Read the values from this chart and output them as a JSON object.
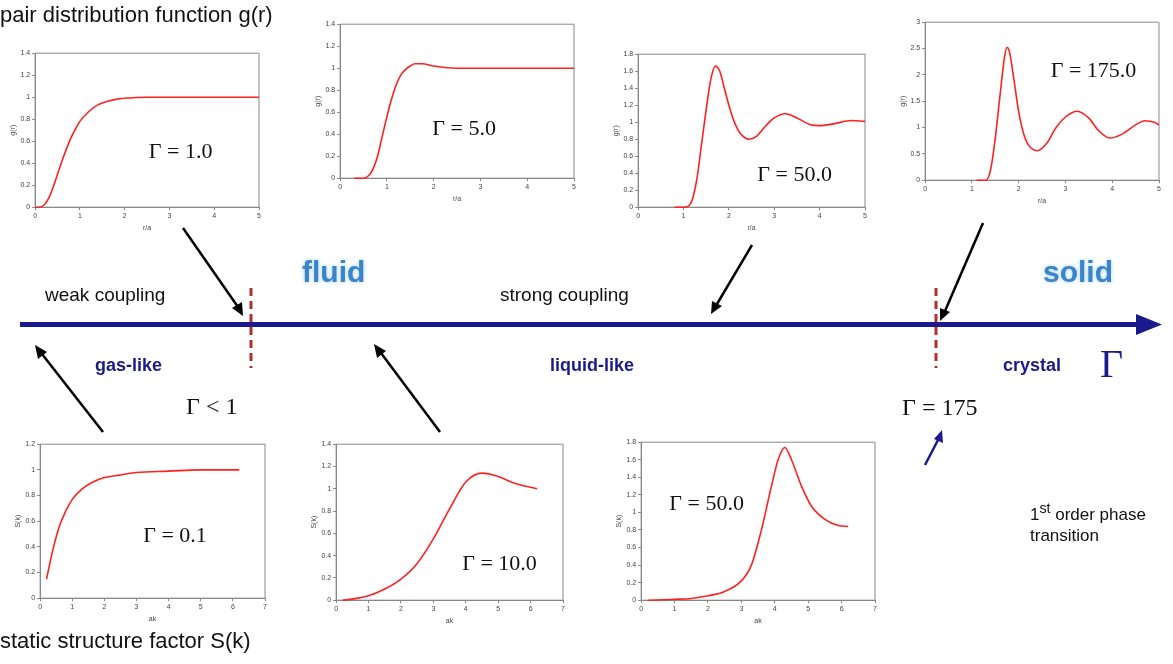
{
  "chart_data": [
    {
      "type": "line",
      "xlabel": "r/a",
      "ylabel": "g(r)",
      "color": "#ff2020",
      "marker": "none",
      "grid": false,
      "annotations": [
        "Γ = 1.0"
      ],
      "xlim": [
        0,
        5
      ],
      "xticks": [
        0,
        1,
        2,
        3,
        4,
        5
      ],
      "ylim": [
        0,
        1.4
      ],
      "yticks": [
        0,
        0.2,
        0.4,
        0.6,
        0.8,
        1,
        1.2,
        1.4
      ],
      "x": [
        0,
        0.1,
        0.2,
        0.3,
        0.4,
        0.5,
        0.6,
        0.7,
        0.8,
        0.9,
        1,
        1.2,
        1.4,
        1.6,
        1.8,
        2,
        2.5,
        3,
        4,
        5
      ],
      "values": [
        0,
        0,
        0.02,
        0.08,
        0.18,
        0.3,
        0.42,
        0.53,
        0.63,
        0.71,
        0.78,
        0.87,
        0.93,
        0.96,
        0.98,
        0.99,
        1,
        1,
        1,
        1
      ]
    },
    {
      "type": "line",
      "xlabel": "r/a",
      "ylabel": "g(r)",
      "color": "#ff2020",
      "marker": "none",
      "grid": false,
      "annotations": [
        "Γ = 5.0"
      ],
      "xlim": [
        0,
        5
      ],
      "xticks": [
        0,
        1,
        2,
        3,
        4,
        5
      ],
      "ylim": [
        0,
        1.4
      ],
      "yticks": [
        0,
        0.2,
        0.4,
        0.6,
        0.8,
        1,
        1.2,
        1.4
      ],
      "x": [
        0.3,
        0.5,
        0.6,
        0.7,
        0.8,
        0.9,
        1,
        1.1,
        1.2,
        1.3,
        1.4,
        1.5,
        1.6,
        1.75,
        2,
        2.5,
        3,
        4,
        5
      ],
      "values": [
        0,
        0,
        0.02,
        0.08,
        0.2,
        0.38,
        0.56,
        0.72,
        0.85,
        0.94,
        0.99,
        1.02,
        1.04,
        1.04,
        1.02,
        1,
        1,
        1,
        1
      ]
    },
    {
      "type": "line",
      "xlabel": "r/a",
      "ylabel": "g(r)",
      "color": "#ff2020",
      "marker": "none",
      "grid": false,
      "annotations": [
        "Γ = 50.0"
      ],
      "xlim": [
        0,
        5
      ],
      "xticks": [
        0,
        1,
        2,
        3,
        4,
        5
      ],
      "ylim": [
        0,
        1.8
      ],
      "yticks": [
        0,
        0.2,
        0.4,
        0.6,
        0.8,
        1,
        1.2,
        1.4,
        1.6,
        1.8
      ],
      "x": [
        0.8,
        1,
        1.1,
        1.2,
        1.3,
        1.4,
        1.5,
        1.6,
        1.7,
        1.8,
        1.9,
        2,
        2.1,
        2.2,
        2.3,
        2.45,
        2.6,
        2.8,
        3,
        3.25,
        3.5,
        3.8,
        4,
        4.3,
        4.7,
        5
      ],
      "values": [
        0,
        0,
        0.01,
        0.1,
        0.35,
        0.75,
        1.15,
        1.5,
        1.66,
        1.6,
        1.4,
        1.2,
        1.03,
        0.91,
        0.84,
        0.8,
        0.83,
        0.95,
        1.05,
        1.1,
        1.05,
        0.97,
        0.96,
        0.98,
        1.02,
        1.01
      ]
    },
    {
      "type": "line",
      "xlabel": "r/a",
      "ylabel": "g(r)",
      "color": "#ff2020",
      "marker": "none",
      "grid": false,
      "annotations": [
        "Γ = 175.0"
      ],
      "xlim": [
        0,
        5
      ],
      "xticks": [
        0,
        1,
        2,
        3,
        4,
        5
      ],
      "ylim": [
        0,
        3
      ],
      "yticks": [
        0,
        0.5,
        1,
        1.5,
        2,
        2.5,
        3
      ],
      "x": [
        1.1,
        1.3,
        1.4,
        1.5,
        1.6,
        1.7,
        1.75,
        1.8,
        1.9,
        2,
        2.1,
        2.2,
        2.4,
        2.6,
        2.8,
        3,
        3.25,
        3.5,
        3.7,
        3.95,
        4.2,
        4.5,
        4.7,
        4.9,
        5
      ],
      "values": [
        0,
        0,
        0.2,
        0.8,
        1.6,
        2.35,
        2.52,
        2.45,
        1.9,
        1.3,
        0.9,
        0.68,
        0.56,
        0.7,
        1,
        1.2,
        1.31,
        1.18,
        0.95,
        0.8,
        0.87,
        1.05,
        1.13,
        1.1,
        1.05
      ]
    },
    {
      "type": "line",
      "xlabel": "ak",
      "ylabel": "S(k)",
      "color": "#ff2020",
      "marker": "none",
      "grid": false,
      "annotations": [
        "Γ = 0.1"
      ],
      "xlim": [
        0,
        7
      ],
      "xticks": [
        0,
        1,
        2,
        3,
        4,
        5,
        6,
        7
      ],
      "ylim": [
        0,
        1.2
      ],
      "yticks": [
        0,
        0.2,
        0.4,
        0.6,
        0.8,
        1,
        1.2
      ],
      "x": [
        0.2,
        0.4,
        0.6,
        0.8,
        1,
        1.3,
        1.6,
        2,
        2.5,
        3,
        4,
        5,
        6.2
      ],
      "values": [
        0.15,
        0.38,
        0.56,
        0.68,
        0.77,
        0.85,
        0.9,
        0.94,
        0.96,
        0.98,
        0.99,
        1,
        1
      ]
    },
    {
      "type": "line",
      "xlabel": "ak",
      "ylabel": "S(k)",
      "color": "#ff2020",
      "marker": "none",
      "grid": false,
      "annotations": [
        "Γ = 10.0"
      ],
      "xlim": [
        0,
        7
      ],
      "xticks": [
        0,
        1,
        2,
        3,
        4,
        5,
        6,
        7
      ],
      "ylim": [
        0,
        1.4
      ],
      "yticks": [
        0,
        0.2,
        0.4,
        0.6,
        0.8,
        1,
        1.2,
        1.4
      ],
      "x": [
        0.2,
        0.5,
        1,
        1.5,
        2,
        2.5,
        3,
        3.5,
        4,
        4.5,
        5,
        5.5,
        6.2
      ],
      "values": [
        0,
        0.01,
        0.04,
        0.1,
        0.19,
        0.33,
        0.55,
        0.82,
        1.06,
        1.14,
        1.11,
        1.05,
        1
      ]
    },
    {
      "type": "line",
      "xlabel": "ak",
      "ylabel": "S(k)",
      "color": "#ff2020",
      "marker": "none",
      "grid": false,
      "annotations": [
        "Γ = 50.0"
      ],
      "xlim": [
        0,
        7
      ],
      "xticks": [
        0,
        1,
        2,
        3,
        4,
        5,
        6,
        7
      ],
      "ylim": [
        0,
        1.8
      ],
      "yticks": [
        0,
        0.2,
        0.4,
        0.6,
        0.8,
        1,
        1.2,
        1.4,
        1.6,
        1.8
      ],
      "x": [
        0.2,
        1,
        1.5,
        2,
        2.5,
        3,
        3.3,
        3.6,
        3.9,
        4.1,
        4.3,
        4.5,
        4.8,
        5.1,
        5.5,
        5.9,
        6.2
      ],
      "values": [
        0,
        0.01,
        0.02,
        0.05,
        0.1,
        0.22,
        0.4,
        0.8,
        1.3,
        1.6,
        1.74,
        1.6,
        1.3,
        1.07,
        0.92,
        0.85,
        0.84
      ]
    },
    {
      "type": "other",
      "annotations": [
        "pair distribution function g(r)",
        "static structure factor S(k)",
        "fluid",
        "solid",
        "weak coupling",
        "strong coupling",
        "gas-like",
        "liquid-like",
        "crystal",
        "Γ",
        "Γ < 1",
        "Γ = 175",
        "1$^{st}$ order phase transition"
      ]
    }
  ]
}
